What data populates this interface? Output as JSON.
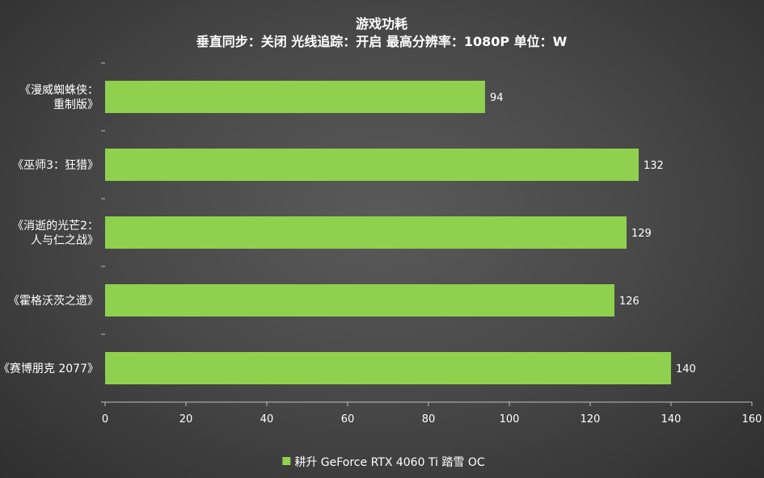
{
  "chart_data": {
    "type": "bar",
    "orientation": "horizontal",
    "title": "游戏功耗",
    "subtitle": "垂直同步：关闭  光线追踪：开启  最高分辨率：1080P   单位：W",
    "categories": [
      [
        "《漫威蜘蛛侠：",
        "重制版》"
      ],
      [
        "《巫师3：狂猎》"
      ],
      [
        "《消逝的光芒2：",
        "人与仁之战》"
      ],
      [
        "《霍格沃茨之遗》"
      ],
      [
        "《赛博朋克 2077》"
      ]
    ],
    "series": [
      {
        "name": "耕升 GeForce RTX 4060 Ti 踏雪 OC",
        "values": [
          94,
          132,
          129,
          126,
          140
        ],
        "color": "#8fd14f"
      }
    ],
    "xlim": [
      0,
      160
    ],
    "xticks": [
      0,
      20,
      40,
      60,
      80,
      100,
      120,
      140,
      160
    ],
    "grid": false,
    "legend_position": "bottom-center"
  }
}
